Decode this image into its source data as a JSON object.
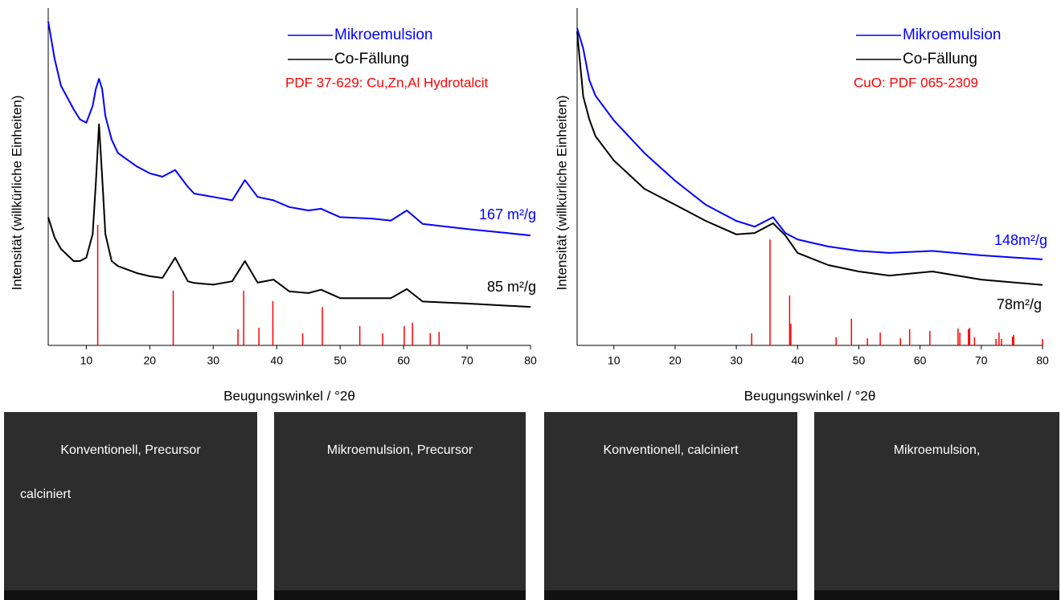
{
  "chart_data": [
    {
      "type": "line",
      "xlabel": "Beugungswinkel / °2θ",
      "ylabel": "Intensität (willkürliche Einheiten)",
      "xlim": [
        4,
        80
      ],
      "xticks": [
        10,
        20,
        30,
        40,
        50,
        60,
        70,
        80
      ],
      "ylim": [
        0,
        100
      ],
      "x": [
        4,
        5,
        6,
        8,
        9,
        10,
        11,
        11.5,
        12,
        12.5,
        13,
        14,
        15,
        18,
        20,
        22,
        24,
        26,
        27,
        30,
        33,
        35,
        37,
        39.5,
        42,
        45,
        47,
        50,
        55,
        58,
        60.5,
        63,
        70,
        80
      ],
      "series": [
        {
          "name": "Mikroemulsion",
          "color": "#0000ff",
          "values": [
            96,
            85,
            77,
            70,
            67,
            66,
            71,
            76,
            79,
            76,
            68,
            61,
            57,
            53,
            51,
            50,
            52,
            47,
            45,
            44,
            43,
            49,
            44,
            43,
            41,
            40,
            40.5,
            38,
            37.6,
            37,
            40,
            36,
            34.5,
            32.6
          ]
        },
        {
          "name": "Co-Fällung",
          "color": "#000000",
          "values": [
            38,
            32,
            28.6,
            25,
            25,
            26,
            33,
            48,
            65.5,
            50,
            33,
            25,
            23.5,
            21.4,
            20.5,
            20,
            26,
            19,
            18.5,
            18,
            19,
            25,
            18.6,
            19.5,
            16,
            15.5,
            16.5,
            14,
            14,
            14,
            16.7,
            13,
            12.4,
            11.4
          ]
        }
      ],
      "reference": {
        "name": "PDF 37-629: Cu,Zn,Al Hydrotalcit",
        "color": "#ff0000",
        "x": [
          11.8,
          23.7,
          33.9,
          34.8,
          37.2,
          39.4,
          44.1,
          47.2,
          53.1,
          56.7,
          60.1,
          61.4,
          64.2,
          65.6
        ],
        "values": [
          35.7,
          16.2,
          4.8,
          16.2,
          5.2,
          13.1,
          3.6,
          11.4,
          5.7,
          3.6,
          5.7,
          6.7,
          3.6,
          4
        ]
      },
      "annotations": [
        {
          "text": "167 m²/g",
          "color": "#0000ff"
        },
        {
          "text": "85 m²/g",
          "color": "#000000"
        }
      ]
    },
    {
      "type": "line",
      "xlabel": "Beugungswinkel / °2θ",
      "ylabel": "Intensität (willkürliche Einheiten)",
      "xlim": [
        4,
        80
      ],
      "xticks": [
        10,
        20,
        30,
        40,
        50,
        60,
        70,
        80
      ],
      "ylim": [
        0,
        100
      ],
      "x": [
        4,
        5,
        6,
        7,
        10,
        15,
        20,
        25,
        30,
        33,
        36,
        38,
        40,
        45,
        50,
        55,
        62,
        70,
        80
      ],
      "series": [
        {
          "name": "Mikroemulsion",
          "color": "#0000ff",
          "values": [
            94,
            88,
            78.6,
            74,
            66.7,
            57,
            48.8,
            41.7,
            36.9,
            35.2,
            38,
            33.3,
            31.4,
            29.3,
            28,
            27.4,
            28,
            26.7,
            25.5
          ]
        },
        {
          "name": "Co-Fällung",
          "color": "#000000",
          "values": [
            93,
            73.8,
            67,
            62,
            54.8,
            46.4,
            41.7,
            36.9,
            32.9,
            33.3,
            36.2,
            32.6,
            27.4,
            23.8,
            21.9,
            20.7,
            21.9,
            19.5,
            17.9
          ]
        }
      ],
      "reference": {
        "name": "CuO: PDF 065-2309",
        "color": "#ff0000",
        "x": [
          32.5,
          35.5,
          38.7,
          38.9,
          46.3,
          48.8,
          51.4,
          53.5,
          56.8,
          58.3,
          61.6,
          66.2,
          66.5,
          67.9,
          68.1,
          68.9,
          72.4,
          72.9,
          73.3,
          75.1,
          75.3,
          80
        ],
        "values": [
          3.6,
          31.4,
          14.8,
          6.4,
          2.4,
          7.9,
          2.1,
          3.8,
          2.1,
          4.8,
          4.3,
          5,
          3.8,
          4.8,
          5.2,
          2.4,
          1.9,
          3.8,
          1.9,
          2.6,
          3.1,
          1.9
        ]
      },
      "annotations": [
        {
          "text": "148m²/g",
          "color": "#0000ff"
        },
        {
          "text": "78m²/g",
          "color": "#000000"
        }
      ]
    }
  ],
  "images": [
    {
      "captions": [
        "Konventionell, Precursor",
        "calciniert"
      ]
    },
    {
      "captions": [
        "Mikroemulsion, Precursor"
      ]
    },
    {
      "captions": [
        "Konventionell, calciniert"
      ]
    },
    {
      "captions": [
        "Mikroemulsion,"
      ]
    }
  ]
}
